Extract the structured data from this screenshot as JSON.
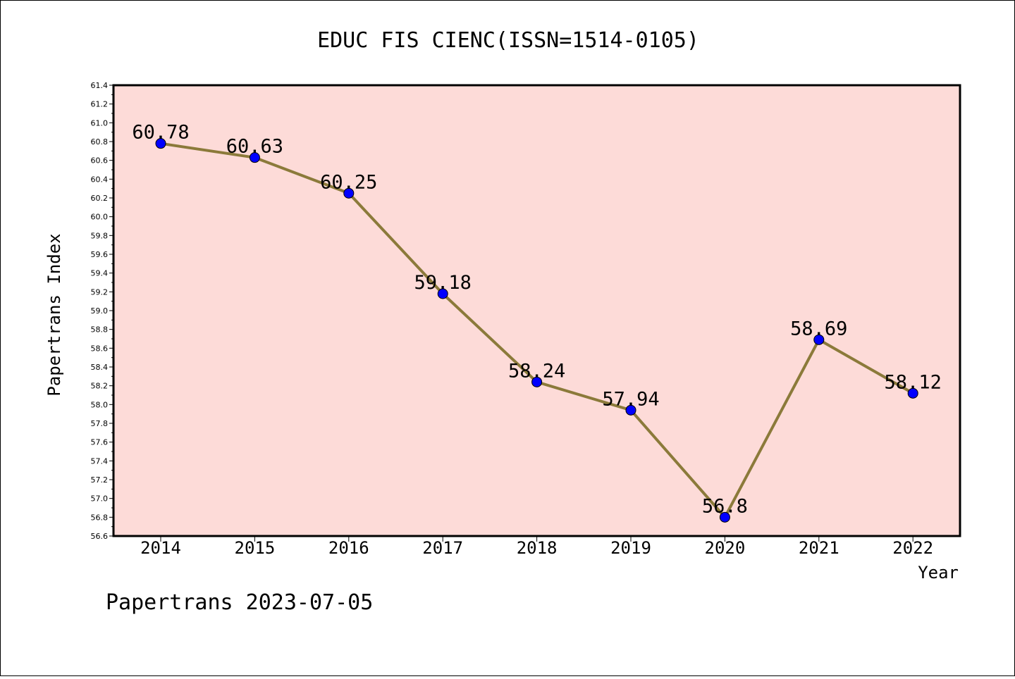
{
  "chart_data": {
    "type": "line",
    "title": "EDUC FIS CIENC(ISSN=1514-0105)",
    "xlabel": "Year",
    "ylabel": "Papertrans Index",
    "x": [
      "2014",
      "2015",
      "2016",
      "2017",
      "2018",
      "2019",
      "2020",
      "2021",
      "2022"
    ],
    "values": [
      60.78,
      60.63,
      60.25,
      59.18,
      58.24,
      57.94,
      56.8,
      58.69,
      58.12
    ],
    "data_labels": [
      "60.78",
      "60.63",
      "60.25",
      "59.18",
      "58.24",
      "57.94",
      "56.8",
      "58.69",
      "58.12"
    ],
    "ylim": [
      56.6,
      61.4
    ],
    "yticks": [
      "56.6",
      "56.8",
      "57.0",
      "57.2",
      "57.4",
      "57.6",
      "57.8",
      "58.0",
      "58.2",
      "58.4",
      "58.6",
      "58.8",
      "59.0",
      "59.2",
      "59.4",
      "59.6",
      "59.8",
      "60.0",
      "60.2",
      "60.4",
      "60.6",
      "60.8",
      "61.0",
      "61.2",
      "61.4"
    ],
    "grid": false,
    "legend": "none",
    "colors": {
      "plot_background": "#fddbd8",
      "line": "#8b7a3a",
      "marker": "#0000ff"
    }
  },
  "footer": "Papertrans 2023-07-05"
}
